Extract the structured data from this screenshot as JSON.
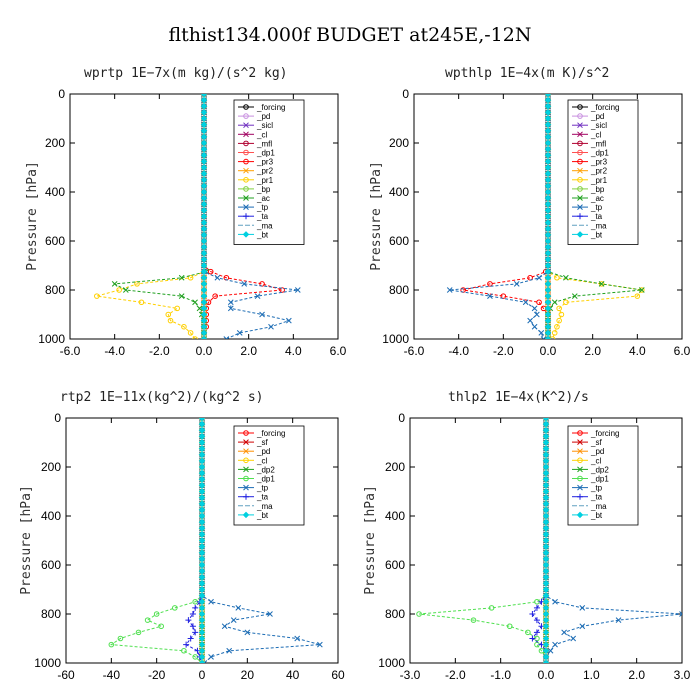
{
  "figure": {
    "title": "flthist134.000f  BUDGET at245E,-12N"
  },
  "chart_data": [
    {
      "type": "line",
      "title": "wprtp  1E−7x(m kg)/(s^2 kg)",
      "ylabel": "Pressure [hPa]",
      "xlim": [
        -6,
        6
      ],
      "ylim": [
        0,
        1000
      ],
      "y_inverted": true,
      "xticks": [
        "-6.0",
        "-4.0",
        "-2.0",
        "0.0",
        "2.0",
        "4.0",
        "6.0"
      ],
      "yticks": [
        "0",
        "200",
        "400",
        "600",
        "800",
        "1000"
      ],
      "legend_position": "top-right",
      "pressure": [
        725,
        750,
        775,
        800,
        825,
        850,
        875,
        900,
        925,
        950,
        975,
        1000
      ],
      "series": [
        {
          "name": "_forcing",
          "color": "#000000",
          "marker": "o",
          "values": [
            0,
            0,
            0,
            0,
            0,
            0,
            0,
            0,
            0,
            0,
            0,
            0
          ]
        },
        {
          "name": "_pd",
          "color": "#c890e0",
          "marker": "o",
          "values": [
            0,
            0,
            0,
            0,
            0,
            0,
            0,
            0,
            0,
            0,
            0,
            0
          ]
        },
        {
          "name": "_sicl",
          "color": "#7030c0",
          "marker": "x",
          "values": [
            0,
            0,
            0,
            0,
            0,
            0,
            0,
            0,
            0,
            0,
            0,
            0
          ]
        },
        {
          "name": "_cl",
          "color": "#a00060",
          "marker": "x",
          "values": [
            0,
            0,
            0,
            0,
            0,
            0,
            0,
            0,
            0,
            0,
            0,
            0
          ]
        },
        {
          "name": "_mfl",
          "color": "#b00030",
          "marker": "o",
          "values": [
            0,
            0,
            0,
            0,
            0,
            0,
            0,
            0,
            0,
            0,
            0,
            0
          ]
        },
        {
          "name": "_dp1",
          "color": "#ff5050",
          "marker": "o",
          "values": [
            0,
            0,
            0,
            0,
            0,
            0,
            0,
            0,
            0,
            0,
            0,
            0
          ]
        },
        {
          "name": "_pr3",
          "color": "#ff0000",
          "marker": "o",
          "values": [
            0.3,
            1.0,
            2.6,
            3.5,
            0.5,
            0.2,
            0.1,
            0.1,
            0.1,
            0.1,
            0,
            0
          ]
        },
        {
          "name": "_pr2",
          "color": "#ffa000",
          "marker": "x",
          "values": [
            0,
            0,
            0,
            0,
            0,
            0,
            0,
            0,
            0,
            0,
            0,
            0
          ]
        },
        {
          "name": "_pr1",
          "color": "#ffd000",
          "marker": "o",
          "values": [
            0,
            -0.6,
            -3.0,
            -3.8,
            -4.8,
            -2.8,
            -1.2,
            -1.6,
            -1.5,
            -0.9,
            -0.6,
            -0.4
          ]
        },
        {
          "name": "_bp",
          "color": "#80d040",
          "marker": "o",
          "values": [
            0,
            0,
            0,
            0,
            0,
            0,
            0,
            0,
            0,
            0,
            0,
            0
          ]
        },
        {
          "name": "_ac",
          "color": "#20a020",
          "marker": "x",
          "values": [
            0.1,
            -1.0,
            -4.0,
            -3.5,
            -1.0,
            -0.4,
            -0.2,
            -0.1,
            0,
            0,
            0,
            0
          ]
        },
        {
          "name": "_tp",
          "color": "#1c6cb4",
          "marker": "x",
          "values": [
            0,
            0.6,
            1.8,
            4.2,
            2.4,
            1.2,
            1.2,
            2.6,
            3.8,
            3.0,
            1.6,
            1.0
          ]
        },
        {
          "name": "_ta",
          "color": "#2020e0",
          "marker": "+",
          "values": [
            0,
            0,
            0,
            0,
            0,
            0,
            0,
            0,
            0,
            0,
            0,
            0
          ]
        },
        {
          "name": "_ma",
          "color": "#60a0c0",
          "marker": "-",
          "values": [
            0,
            0,
            0,
            0,
            0,
            0,
            0,
            0,
            0,
            0,
            0,
            0
          ]
        },
        {
          "name": "_bt",
          "color": "#00d0e0",
          "marker": "d",
          "values": [
            0,
            0,
            0,
            0,
            0,
            0,
            0,
            0,
            0,
            0,
            0,
            0
          ]
        }
      ]
    },
    {
      "type": "line",
      "title": "wpthlp  1E−4x(m K)/s^2",
      "ylabel": "Pressure [hPa]",
      "xlim": [
        -6,
        6
      ],
      "ylim": [
        0,
        1000
      ],
      "y_inverted": true,
      "xticks": [
        "-6.0",
        "-4.0",
        "-2.0",
        "0.0",
        "2.0",
        "4.0",
        "6.0"
      ],
      "yticks": [
        "0",
        "200",
        "400",
        "600",
        "800",
        "1000"
      ],
      "legend_position": "top-right",
      "pressure": [
        725,
        750,
        775,
        800,
        825,
        850,
        875,
        900,
        925,
        950,
        975,
        1000
      ],
      "series": [
        {
          "name": "_forcing",
          "color": "#000000",
          "marker": "o",
          "values": [
            0,
            0,
            0,
            0,
            0,
            0,
            0,
            0,
            0,
            0,
            0,
            0
          ]
        },
        {
          "name": "_pd",
          "color": "#c890e0",
          "marker": "o",
          "values": [
            0,
            0,
            0,
            0,
            0,
            0,
            0,
            0,
            0,
            0,
            0,
            0
          ]
        },
        {
          "name": "_sicl",
          "color": "#7030c0",
          "marker": "x",
          "values": [
            0,
            0,
            0,
            0,
            0,
            0,
            0,
            0,
            0,
            0,
            0,
            0
          ]
        },
        {
          "name": "_cl",
          "color": "#a00060",
          "marker": "x",
          "values": [
            0,
            0,
            0,
            0,
            0,
            0,
            0,
            0,
            0,
            0,
            0,
            0
          ]
        },
        {
          "name": "_mfl",
          "color": "#b00030",
          "marker": "o",
          "values": [
            0,
            0,
            0,
            0,
            0,
            0,
            0,
            0,
            0,
            0,
            0,
            0
          ]
        },
        {
          "name": "_dp1",
          "color": "#ff5050",
          "marker": "o",
          "values": [
            0,
            0,
            0,
            0,
            0,
            0,
            0,
            0,
            0,
            0,
            0,
            0
          ]
        },
        {
          "name": "_pr3",
          "color": "#ff0000",
          "marker": "o",
          "values": [
            -0.1,
            -0.8,
            -2.6,
            -3.8,
            -2.0,
            -0.4,
            -0.2,
            0,
            0,
            0,
            0,
            0
          ]
        },
        {
          "name": "_pr2",
          "color": "#ffa000",
          "marker": "x",
          "values": [
            0,
            0,
            0,
            0,
            0,
            0,
            0,
            0,
            0,
            0,
            0,
            0
          ]
        },
        {
          "name": "_pr1",
          "color": "#ffd000",
          "marker": "o",
          "values": [
            0,
            0.4,
            2.4,
            4.2,
            4.0,
            0.8,
            0.5,
            0.6,
            0.5,
            0.4,
            0.3,
            0.2
          ]
        },
        {
          "name": "_bp",
          "color": "#80d040",
          "marker": "o",
          "values": [
            0,
            0,
            0,
            0,
            0,
            0,
            0,
            0,
            0,
            0,
            0,
            0
          ]
        },
        {
          "name": "_ac",
          "color": "#20a020",
          "marker": "x",
          "values": [
            0,
            0.8,
            2.4,
            4.2,
            1.2,
            0.3,
            0.1,
            0,
            0,
            0,
            0,
            0
          ]
        },
        {
          "name": "_tp",
          "color": "#1c6cb4",
          "marker": "x",
          "values": [
            0,
            -0.4,
            -1.4,
            -4.4,
            -2.6,
            -1.0,
            -0.6,
            -0.5,
            -0.8,
            -0.6,
            -0.3,
            -0.2
          ]
        },
        {
          "name": "_ta",
          "color": "#2020e0",
          "marker": "+",
          "values": [
            0,
            0,
            0,
            0,
            0,
            0,
            0,
            0,
            0,
            0,
            0,
            0
          ]
        },
        {
          "name": "_ma",
          "color": "#60a0c0",
          "marker": "-",
          "values": [
            0,
            0,
            0,
            0,
            0,
            0,
            0,
            0,
            0,
            0,
            0,
            0
          ]
        },
        {
          "name": "_bt",
          "color": "#00d0e0",
          "marker": "d",
          "values": [
            0,
            0,
            0,
            0,
            0,
            0,
            0,
            0,
            0,
            0,
            0,
            0
          ]
        }
      ]
    },
    {
      "type": "line",
      "title": "rtp2  1E−11x(kg^2)/(kg^2 s)",
      "ylabel": "Pressure [hPa]",
      "xlim": [
        -60,
        60
      ],
      "ylim": [
        0,
        1000
      ],
      "y_inverted": true,
      "xticks": [
        "-60",
        "-40",
        "-20",
        "0",
        "20",
        "40",
        "60"
      ],
      "yticks": [
        "0",
        "200",
        "400",
        "600",
        "800",
        "1000"
      ],
      "legend_position": "top-right",
      "pressure": [
        725,
        750,
        775,
        800,
        825,
        850,
        875,
        900,
        925,
        950,
        975,
        1000
      ],
      "series": [
        {
          "name": "_forcing",
          "color": "#ff0000",
          "marker": "o",
          "values": [
            0,
            0,
            0,
            0,
            0,
            0,
            0,
            0,
            0,
            0,
            0,
            0
          ]
        },
        {
          "name": "_sf",
          "color": "#d00000",
          "marker": "x",
          "values": [
            0,
            0,
            0,
            0,
            0,
            0,
            0,
            0,
            0,
            0,
            0,
            0
          ]
        },
        {
          "name": "_pd",
          "color": "#ff9000",
          "marker": "x",
          "values": [
            0,
            0,
            0,
            0,
            0,
            0,
            0,
            0,
            0,
            0,
            0,
            0
          ]
        },
        {
          "name": "_cl",
          "color": "#ffd000",
          "marker": "o",
          "values": [
            0,
            0,
            0,
            0,
            0,
            0,
            0,
            0,
            0,
            0,
            0,
            0
          ]
        },
        {
          "name": "_dp2",
          "color": "#20a020",
          "marker": "x",
          "values": [
            0,
            0,
            0,
            0,
            0,
            0,
            0,
            0,
            0,
            0,
            0,
            0
          ]
        },
        {
          "name": "_dp1",
          "color": "#50e050",
          "marker": "o",
          "values": [
            0,
            -3,
            -12,
            -20,
            -24,
            -18,
            -28,
            -36,
            -40,
            -8,
            -3,
            0
          ]
        },
        {
          "name": "_tp",
          "color": "#1c6cb4",
          "marker": "x",
          "values": [
            0,
            4,
            16,
            30,
            14,
            10,
            20,
            42,
            52,
            12,
            4,
            1
          ]
        },
        {
          "name": "_ta",
          "color": "#2020e0",
          "marker": "+",
          "values": [
            0,
            -1,
            -3,
            -4,
            -6,
            -4,
            -3,
            -5,
            -7,
            -2,
            -1,
            0
          ]
        },
        {
          "name": "_ma",
          "color": "#60a0c0",
          "marker": "-",
          "values": [
            0,
            0,
            0,
            0,
            0,
            0,
            0,
            0,
            0,
            0,
            0,
            0
          ]
        },
        {
          "name": "_bt",
          "color": "#00d0e0",
          "marker": "d",
          "values": [
            0,
            0,
            0,
            0,
            0,
            0,
            0,
            0,
            0,
            0,
            0,
            0
          ]
        }
      ]
    },
    {
      "type": "line",
      "title": "thlp2  1E−4x(K^2)/s",
      "ylabel": "Pressure [hPa]",
      "xlim": [
        -3,
        3
      ],
      "ylim": [
        0,
        1000
      ],
      "y_inverted": true,
      "xticks": [
        "-3.0",
        "-2.0",
        "-1.0",
        "0.0",
        "1.0",
        "2.0",
        "3.0"
      ],
      "yticks": [
        "0",
        "200",
        "400",
        "600",
        "800",
        "1000"
      ],
      "legend_position": "top-right",
      "pressure": [
        725,
        750,
        775,
        800,
        825,
        850,
        875,
        900,
        925,
        950,
        975,
        1000
      ],
      "series": [
        {
          "name": "_forcing",
          "color": "#ff0000",
          "marker": "o",
          "values": [
            0,
            0,
            0,
            0,
            0,
            0,
            0,
            0,
            0,
            0,
            0,
            0
          ]
        },
        {
          "name": "_sf",
          "color": "#d00000",
          "marker": "x",
          "values": [
            0,
            0,
            0,
            0,
            0,
            0,
            0,
            0,
            0,
            0,
            0,
            0
          ]
        },
        {
          "name": "_pd",
          "color": "#ff9000",
          "marker": "x",
          "values": [
            0,
            0,
            0,
            0,
            0,
            0,
            0,
            0,
            0,
            0,
            0,
            0
          ]
        },
        {
          "name": "_cl",
          "color": "#ffd000",
          "marker": "o",
          "values": [
            0,
            0,
            0,
            0,
            0,
            0,
            0,
            0,
            0,
            0,
            0,
            0
          ]
        },
        {
          "name": "_dp2",
          "color": "#20a020",
          "marker": "x",
          "values": [
            0,
            0,
            0,
            0,
            0,
            0,
            0,
            0,
            0,
            0,
            0,
            0
          ]
        },
        {
          "name": "_dp1",
          "color": "#50e050",
          "marker": "o",
          "values": [
            0,
            -0.2,
            -1.2,
            -2.8,
            -1.6,
            -0.8,
            -0.4,
            -0.2,
            -0.2,
            -0.1,
            0,
            0
          ]
        },
        {
          "name": "_tp",
          "color": "#1c6cb4",
          "marker": "x",
          "values": [
            0,
            0.2,
            0.8,
            3.0,
            1.6,
            0.8,
            0.4,
            0.6,
            0.2,
            0.1,
            0,
            0
          ]
        },
        {
          "name": "_ta",
          "color": "#2020e0",
          "marker": "+",
          "values": [
            0,
            -0.1,
            -0.2,
            -0.3,
            -0.2,
            -0.1,
            -0.2,
            -0.3,
            -0.1,
            0,
            0,
            0
          ]
        },
        {
          "name": "_ma",
          "color": "#60a0c0",
          "marker": "-",
          "values": [
            0,
            0,
            0,
            0,
            0,
            0,
            0,
            0,
            0,
            0,
            0,
            0
          ]
        },
        {
          "name": "_bt",
          "color": "#00d0e0",
          "marker": "d",
          "values": [
            0,
            0,
            0,
            0,
            0,
            0,
            0,
            0,
            0,
            0,
            0,
            0
          ]
        }
      ]
    }
  ]
}
